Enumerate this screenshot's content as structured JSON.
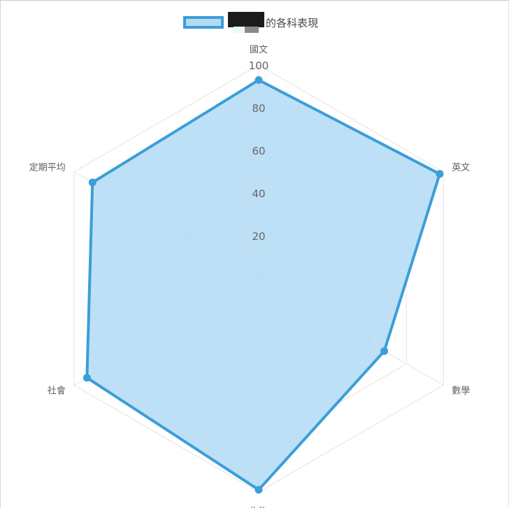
{
  "legend": {
    "label_suffix": "的各科表現",
    "colors": {
      "line": "#3b9ed8",
      "fill": "#b3dbf5"
    }
  },
  "chart_data": {
    "type": "radar",
    "categories": [
      "國文",
      "英文",
      "數學",
      "生物",
      "社會",
      "定期平均"
    ],
    "series": [
      {
        "values": [
          93,
          98,
          68,
          99,
          93,
          90
        ]
      }
    ],
    "rlim": [
      0,
      100
    ],
    "ticks": [
      20,
      40,
      60,
      80,
      100
    ],
    "tick_labels": [
      "20",
      "40",
      "60",
      "80",
      "100"
    ],
    "grid": true,
    "legend_position": "top-center"
  }
}
